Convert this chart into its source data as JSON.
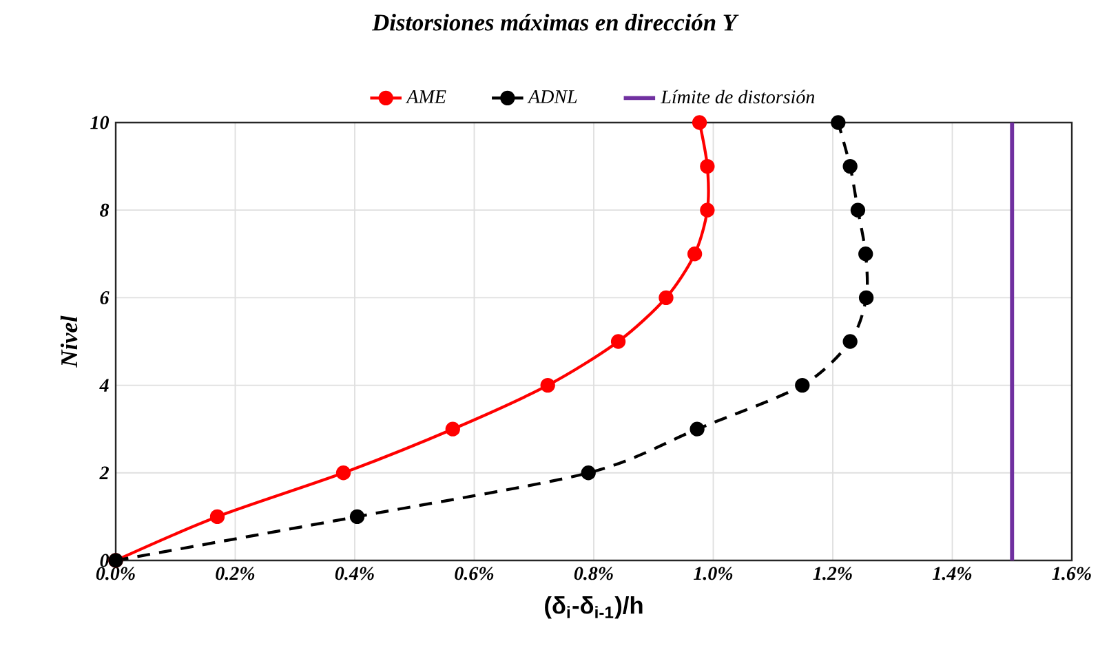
{
  "chart_data": {
    "type": "line",
    "title": "Distorsiones máximas en dirección Y",
    "xlabel": "(δ$_{i}$-δ$_{i-1}$)/h",
    "ylabel": "Nivel",
    "xlim": [
      0,
      1.6
    ],
    "xticks": [
      {
        "value": 0,
        "label": "0.0%"
      },
      {
        "value": 0.2,
        "label": "0.2%"
      },
      {
        "value": 0.4,
        "label": "0.4%"
      },
      {
        "value": 0.6,
        "label": "0.6%"
      },
      {
        "value": 0.8,
        "label": "0.8%"
      },
      {
        "value": 1.0,
        "label": "1.0%"
      },
      {
        "value": 1.2,
        "label": "1.2%"
      },
      {
        "value": 1.4,
        "label": "1.4%"
      },
      {
        "value": 1.6,
        "label": "1.6%"
      }
    ],
    "ylim": [
      0,
      10
    ],
    "yticks": [
      0,
      2,
      4,
      6,
      8,
      10
    ],
    "grid": true,
    "legend": "top",
    "marker": "circle",
    "series": [
      {
        "name": "AME",
        "color": "#ff0000",
        "line_style": "solid",
        "x": [
          0,
          0.17,
          0.381,
          0.564,
          0.723,
          0.841,
          0.921,
          0.969,
          0.99,
          0.99,
          0.977
        ],
        "values": [
          0,
          1,
          2,
          3,
          4,
          5,
          6,
          7,
          8,
          9,
          10
        ]
      },
      {
        "name": "ADNL",
        "color": "#000000",
        "line_style": "dashed",
        "x": [
          0,
          0.404,
          0.791,
          0.973,
          1.149,
          1.229,
          1.256,
          1.255,
          1.242,
          1.229,
          1.209
        ],
        "values": [
          0,
          1,
          2,
          3,
          4,
          5,
          6,
          7,
          8,
          9,
          10
        ]
      }
    ],
    "ref_lines": [
      {
        "axis": "x",
        "value": 1.5,
        "label": "Límite de distorsión",
        "color": "#7030a0"
      }
    ]
  }
}
